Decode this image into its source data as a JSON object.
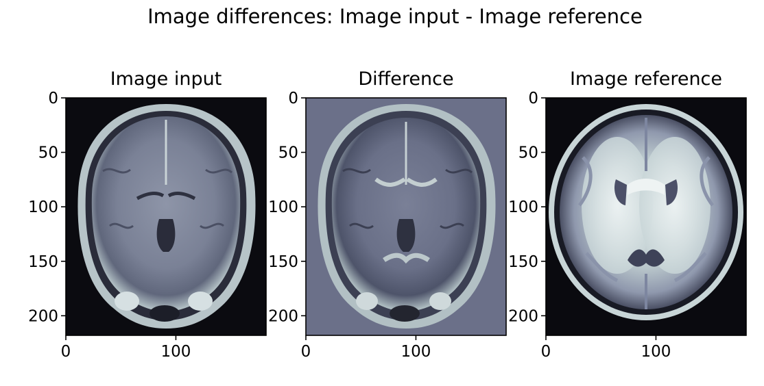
{
  "chart_data": {
    "type": "image_grid",
    "title": "Image differences: Image input - Image reference",
    "colormap": "bone",
    "panels": [
      {
        "id": "input",
        "title": "Image input",
        "content": "coronal MRI slice of the head (brain with skull and scalp)",
        "xlim": [
          0,
          182
        ],
        "ylim": [
          218,
          0
        ],
        "xticks": [
          0,
          100
        ],
        "yticks": [
          0,
          50,
          100,
          150,
          200
        ]
      },
      {
        "id": "difference",
        "title": "Difference",
        "content": "pixelwise difference between input and reference, mid-grey background",
        "xlim": [
          0,
          182
        ],
        "ylim": [
          218,
          0
        ],
        "xticks": [
          0,
          100
        ],
        "yticks": [
          0,
          50,
          100,
          150,
          200
        ]
      },
      {
        "id": "reference",
        "title": "Image reference",
        "content": "smooth axial brain template (white matter, ventricles, skull rim)",
        "xlim": [
          0,
          182
        ],
        "ylim": [
          218,
          0
        ],
        "xticks": [
          0,
          100
        ],
        "yticks": [
          0,
          50,
          100,
          150,
          200
        ]
      }
    ]
  }
}
